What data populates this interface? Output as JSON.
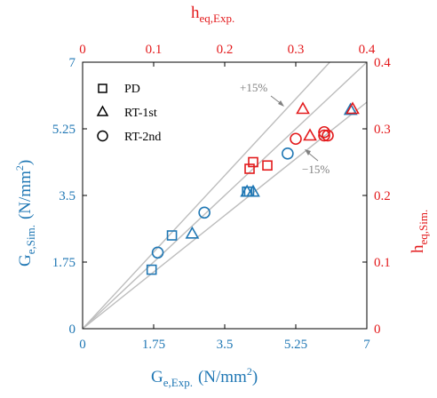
{
  "colors": {
    "blue": "#1f77b4",
    "red": "#e31a1c",
    "black": "#000000",
    "guide": "#bdbdbd",
    "annotation": "#808080"
  },
  "chart_data": {
    "type": "scatter",
    "x_bottom": {
      "label_main": "G",
      "label_sub": "e,Exp.",
      "label_unit": "(N/mm",
      "label_sup": "2",
      "label_close": ")",
      "range": [
        0,
        7
      ],
      "ticks": [
        "0",
        "1.75",
        "3.5",
        "5.25",
        "7"
      ],
      "tick_values": [
        0,
        1.75,
        3.5,
        5.25,
        7
      ]
    },
    "y_left": {
      "label_main": "G",
      "label_sub": "e,Sim.",
      "label_unit": "(N/mm",
      "label_sup": "2",
      "label_close": ")",
      "range": [
        0,
        7
      ],
      "ticks": [
        "0",
        "1.75",
        "3.5",
        "5.25",
        "7"
      ],
      "tick_values": [
        0,
        1.75,
        3.5,
        5.25,
        7
      ]
    },
    "x_top": {
      "label_main": "h",
      "label_sub": "eq,Exp.",
      "range": [
        0,
        0.4
      ],
      "ticks": [
        "0",
        "0.1",
        "0.2",
        "0.3",
        "0.4"
      ],
      "tick_values": [
        0,
        0.1,
        0.2,
        0.3,
        0.4
      ]
    },
    "y_right": {
      "label_main": "h",
      "label_sub": "eq,Sim.",
      "range": [
        0,
        0.4
      ],
      "ticks": [
        "0",
        "0.1",
        "0.2",
        "0.3",
        "0.4"
      ],
      "tick_values": [
        0,
        0.1,
        0.2,
        0.3,
        0.4
      ]
    },
    "legend": {
      "placement": "top-left",
      "entries": [
        {
          "label": "PD",
          "marker": "square"
        },
        {
          "label": "RT-1st",
          "marker": "triangle"
        },
        {
          "label": "RT-2nd",
          "marker": "circle"
        }
      ]
    },
    "reference_lines": [
      {
        "slope": 1.15,
        "label": "+15%"
      },
      {
        "slope": 1.0,
        "label": ""
      },
      {
        "slope": 0.85,
        "label": "−15%"
      }
    ],
    "series": [
      {
        "axes": "G",
        "marker": "square",
        "points": [
          [
            1.7,
            1.55
          ],
          [
            2.2,
            2.45
          ],
          [
            4.05,
            3.6
          ],
          [
            4.1,
            3.6
          ]
        ]
      },
      {
        "axes": "G",
        "marker": "triangle",
        "points": [
          [
            2.7,
            2.5
          ],
          [
            4.05,
            3.6
          ],
          [
            4.2,
            3.6
          ],
          [
            6.6,
            5.75
          ]
        ]
      },
      {
        "axes": "G",
        "marker": "circle",
        "points": [
          [
            1.85,
            2.0
          ],
          [
            3.0,
            3.05
          ],
          [
            5.05,
            4.6
          ]
        ]
      },
      {
        "axes": "h",
        "marker": "square",
        "points": [
          [
            0.235,
            0.24
          ],
          [
            0.24,
            0.25
          ],
          [
            0.26,
            0.245
          ]
        ]
      },
      {
        "axes": "h",
        "marker": "triangle",
        "points": [
          [
            0.31,
            0.33
          ],
          [
            0.32,
            0.29
          ],
          [
            0.38,
            0.33
          ]
        ]
      },
      {
        "axes": "h",
        "marker": "circle",
        "points": [
          [
            0.3,
            0.285
          ],
          [
            0.34,
            0.29
          ],
          [
            0.34,
            0.295
          ],
          [
            0.345,
            0.29
          ]
        ]
      }
    ],
    "annotations": [
      {
        "text": "+15%",
        "for": "upper-line"
      },
      {
        "text": "−15%",
        "for": "lower-line"
      }
    ]
  }
}
